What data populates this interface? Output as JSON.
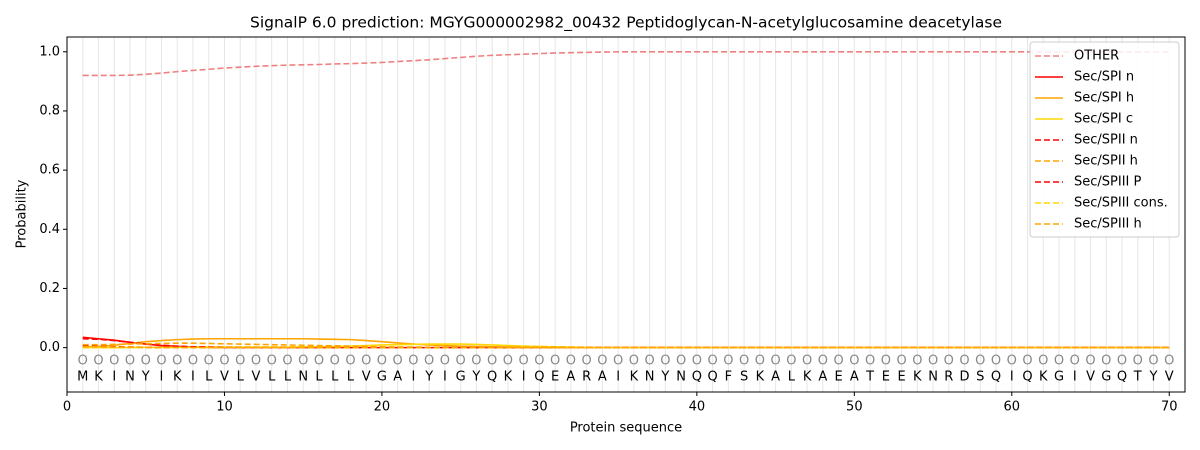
{
  "chart_data": {
    "type": "line",
    "title": "SignalP 6.0 prediction: MGYG000002982_00432 Peptidoglycan-N-acetylglucosamine deacetylase",
    "x_label": "Protein sequence",
    "y_label": "Probability",
    "xlim": [
      0,
      71
    ],
    "ylim": [
      -0.15,
      1.05
    ],
    "xticks": [
      0,
      10,
      20,
      30,
      40,
      50,
      60,
      70
    ],
    "yticks": [
      {
        "value": 0,
        "label": "0.0"
      },
      0.2,
      0.4,
      0.6,
      0.8,
      {
        "value": 1,
        "label": "1.0"
      }
    ],
    "legend_position": "upper right",
    "x": [
      1,
      2,
      3,
      4,
      5,
      6,
      7,
      8,
      9,
      10,
      11,
      12,
      13,
      14,
      15,
      16,
      17,
      18,
      19,
      20,
      21,
      22,
      23,
      24,
      25,
      26,
      27,
      28,
      29,
      30,
      31,
      32,
      33,
      34,
      35,
      36,
      37,
      38,
      39,
      40,
      41,
      42,
      43,
      44,
      45,
      46,
      47,
      48,
      49,
      50,
      51,
      52,
      53,
      54,
      55,
      56,
      57,
      58,
      59,
      60,
      61,
      62,
      63,
      64,
      65,
      66,
      67,
      68,
      69,
      70
    ],
    "residues": [
      "M",
      "K",
      "I",
      "N",
      "Y",
      "I",
      "K",
      "I",
      "L",
      "V",
      "L",
      "V",
      "L",
      "L",
      "N",
      "L",
      "L",
      "L",
      "V",
      "G",
      "A",
      "I",
      "Y",
      "I",
      "G",
      "Y",
      "Q",
      "K",
      "I",
      "Q",
      "E",
      "A",
      "R",
      "A",
      "I",
      "K",
      "N",
      "Y",
      "N",
      "Q",
      "Q",
      "F",
      "S",
      "K",
      "A",
      "L",
      "K",
      "A",
      "E",
      "A",
      "T",
      "E",
      "E",
      "K",
      "N",
      "R",
      "D",
      "S",
      "Q",
      "I",
      "Q",
      "K",
      "G",
      "I",
      "V",
      "G",
      "Q",
      "T",
      "Y",
      "V"
    ],
    "labels": [
      "O",
      "O",
      "O",
      "O",
      "O",
      "O",
      "O",
      "O",
      "O",
      "O",
      "O",
      "O",
      "O",
      "O",
      "O",
      "O",
      "O",
      "O",
      "O",
      "O",
      "O",
      "O",
      "O",
      "O",
      "O",
      "O",
      "O",
      "O",
      "O",
      "O",
      "O",
      "O",
      "O",
      "O",
      "O",
      "O",
      "O",
      "O",
      "O",
      "O",
      "O",
      "O",
      "O",
      "O",
      "O",
      "O",
      "O",
      "O",
      "O",
      "O",
      "O",
      "O",
      "O",
      "O",
      "O",
      "O",
      "O",
      "O",
      "O",
      "O",
      "O",
      "O",
      "O",
      "O",
      "O",
      "O",
      "O",
      "O",
      "O",
      "O"
    ],
    "series": [
      {
        "name": "OTHER",
        "color": "#f08080",
        "style": "dashed",
        "values": [
          0.92,
          0.92,
          0.92,
          0.921,
          0.924,
          0.928,
          0.933,
          0.937,
          0.941,
          0.945,
          0.948,
          0.951,
          0.953,
          0.955,
          0.956,
          0.957,
          0.959,
          0.96,
          0.962,
          0.964,
          0.967,
          0.97,
          0.973,
          0.977,
          0.981,
          0.985,
          0.988,
          0.99,
          0.992,
          0.994,
          0.996,
          0.997,
          0.998,
          0.999,
          1,
          1,
          1,
          1,
          1,
          1,
          1,
          1,
          1,
          1,
          1,
          1,
          1,
          1,
          1,
          1,
          1,
          1,
          1,
          1,
          1,
          1,
          1,
          1,
          1,
          1,
          1,
          1,
          1,
          1,
          1,
          1,
          1,
          1,
          1,
          1
        ]
      },
      {
        "name": "Sec/SPI n",
        "color": "#ff0000",
        "style": "solid",
        "values": [
          0.035,
          0.03,
          0.025,
          0.018,
          0.012,
          0.007,
          0.004,
          0.002,
          0.001,
          0,
          0,
          0,
          0,
          0,
          0,
          0,
          0,
          0,
          0,
          0,
          0,
          0,
          0,
          0,
          0,
          0,
          0,
          0,
          0,
          0,
          0,
          0,
          0,
          0,
          0,
          0,
          0,
          0,
          0,
          0,
          0,
          0,
          0,
          0,
          0,
          0,
          0,
          0,
          0,
          0,
          0,
          0,
          0,
          0,
          0,
          0,
          0,
          0,
          0,
          0,
          0,
          0,
          0,
          0,
          0,
          0,
          0,
          0,
          0,
          0
        ]
      },
      {
        "name": "Sec/SPI h",
        "color": "#ffa500",
        "style": "solid",
        "values": [
          0.002,
          0.004,
          0.008,
          0.014,
          0.02,
          0.024,
          0.027,
          0.029,
          0.03,
          0.03,
          0.03,
          0.03,
          0.03,
          0.03,
          0.03,
          0.029,
          0.028,
          0.027,
          0.024,
          0.02,
          0.016,
          0.012,
          0.009,
          0.007,
          0.005,
          0.004,
          0.003,
          0.002,
          0.001,
          0.001,
          0,
          0,
          0,
          0,
          0,
          0,
          0,
          0,
          0,
          0,
          0,
          0,
          0,
          0,
          0,
          0,
          0,
          0,
          0,
          0,
          0,
          0,
          0,
          0,
          0,
          0,
          0,
          0,
          0,
          0,
          0,
          0,
          0,
          0,
          0,
          0,
          0,
          0,
          0,
          0
        ]
      },
      {
        "name": "Sec/SPI c",
        "color": "#ffd700",
        "style": "solid",
        "values": [
          0,
          0,
          0,
          0,
          0.001,
          0.001,
          0.001,
          0.002,
          0.002,
          0.002,
          0.002,
          0.002,
          0.002,
          0.002,
          0.003,
          0.003,
          0.004,
          0.005,
          0.007,
          0.009,
          0.01,
          0.011,
          0.012,
          0.012,
          0.012,
          0.011,
          0.009,
          0.007,
          0.005,
          0.004,
          0.003,
          0.002,
          0.001,
          0,
          0,
          0,
          0,
          0,
          0,
          0,
          0,
          0,
          0,
          0,
          0,
          0,
          0,
          0,
          0,
          0,
          0,
          0,
          0,
          0,
          0,
          0,
          0,
          0,
          0,
          0,
          0,
          0,
          0,
          0,
          0,
          0,
          0,
          0,
          0,
          0
        ]
      },
      {
        "name": "Sec/SPII n",
        "color": "#ff0000",
        "style": "dashed",
        "values": [
          0.03,
          0.028,
          0.024,
          0.018,
          0.012,
          0.008,
          0.005,
          0.003,
          0.002,
          0.001,
          0,
          0,
          0,
          0,
          0,
          0,
          0,
          0,
          0,
          0,
          0,
          0,
          0,
          0,
          0,
          0,
          0,
          0,
          0,
          0,
          0,
          0,
          0,
          0,
          0,
          0,
          0,
          0,
          0,
          0,
          0,
          0,
          0,
          0,
          0,
          0,
          0,
          0,
          0,
          0,
          0,
          0,
          0,
          0,
          0,
          0,
          0,
          0,
          0,
          0,
          0,
          0,
          0,
          0,
          0,
          0,
          0,
          0,
          0,
          0
        ]
      },
      {
        "name": "Sec/SPII h",
        "color": "#ffa500",
        "style": "dashed",
        "values": [
          0.01,
          0.01,
          0.011,
          0.012,
          0.013,
          0.014,
          0.015,
          0.015,
          0.014,
          0.013,
          0.012,
          0.011,
          0.01,
          0.009,
          0.008,
          0.007,
          0.006,
          0.005,
          0.004,
          0.003,
          0.002,
          0.002,
          0.001,
          0.001,
          0,
          0,
          0,
          0,
          0,
          0,
          0,
          0,
          0,
          0,
          0,
          0,
          0,
          0,
          0,
          0,
          0,
          0,
          0,
          0,
          0,
          0,
          0,
          0,
          0,
          0,
          0,
          0,
          0,
          0,
          0,
          0,
          0,
          0,
          0,
          0,
          0,
          0,
          0,
          0,
          0,
          0,
          0,
          0,
          0,
          0
        ]
      },
      {
        "name": "Sec/SPIII P",
        "color": "#ff0000",
        "style": "dashed",
        "values": [
          0.005,
          0.004,
          0.003,
          0.002,
          0.001,
          0,
          0,
          0,
          0,
          0,
          0,
          0,
          0,
          0,
          0,
          0,
          0,
          0,
          0,
          0,
          0,
          0,
          0,
          0,
          0,
          0,
          0,
          0,
          0,
          0,
          0,
          0,
          0,
          0,
          0,
          0,
          0,
          0,
          0,
          0,
          0,
          0,
          0,
          0,
          0,
          0,
          0,
          0,
          0,
          0,
          0,
          0,
          0,
          0,
          0,
          0,
          0,
          0,
          0,
          0,
          0,
          0,
          0,
          0,
          0,
          0,
          0,
          0,
          0,
          0
        ]
      },
      {
        "name": "Sec/SPIII cons.",
        "color": "#ffd700",
        "style": "dashed",
        "values": [
          0,
          0,
          0,
          0,
          0,
          0,
          0,
          0,
          0,
          0,
          0,
          0,
          0,
          0,
          0,
          0,
          0,
          0,
          0,
          0,
          0,
          0,
          0,
          0,
          0,
          0,
          0,
          0,
          0,
          0,
          0,
          0,
          0,
          0,
          0,
          0,
          0,
          0,
          0,
          0,
          0,
          0,
          0,
          0,
          0,
          0,
          0,
          0,
          0,
          0,
          0,
          0,
          0,
          0,
          0,
          0,
          0,
          0,
          0,
          0,
          0,
          0,
          0,
          0,
          0,
          0,
          0,
          0,
          0,
          0
        ]
      },
      {
        "name": "Sec/SPIII h",
        "color": "#ffa500",
        "style": "dashed",
        "values": [
          0.003,
          0.003,
          0.002,
          0.002,
          0.001,
          0,
          0,
          0,
          0,
          0,
          0,
          0,
          0,
          0,
          0,
          0,
          0,
          0,
          0,
          0,
          0,
          0,
          0,
          0,
          0,
          0,
          0,
          0,
          0,
          0,
          0,
          0,
          0,
          0,
          0,
          0,
          0,
          0,
          0,
          0,
          0,
          0,
          0,
          0,
          0,
          0,
          0,
          0,
          0,
          0,
          0,
          0,
          0,
          0,
          0,
          0,
          0,
          0,
          0,
          0,
          0,
          0,
          0,
          0,
          0,
          0,
          0,
          0,
          0,
          0
        ]
      }
    ]
  }
}
